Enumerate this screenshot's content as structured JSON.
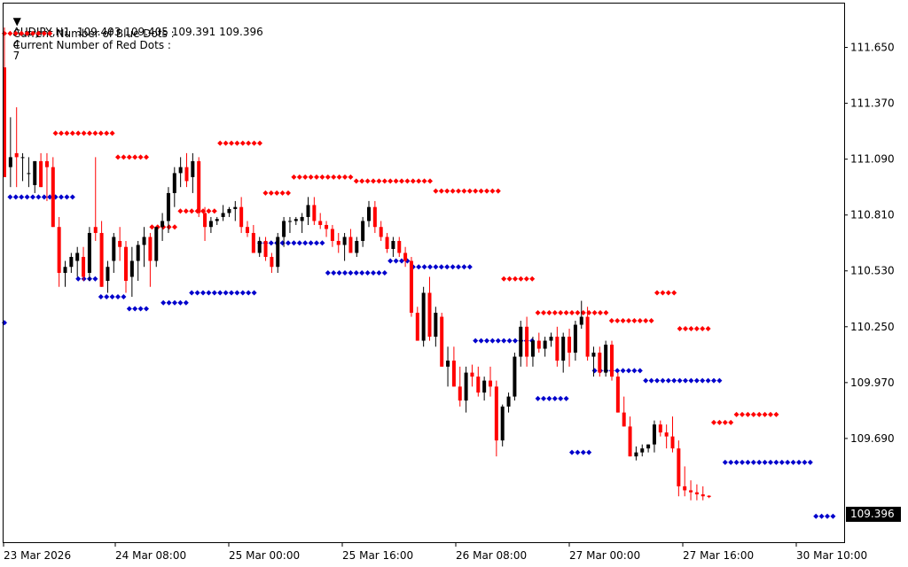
{
  "header": {
    "symbol_line": "AUDJPY,H1  109.403 109.405 109.391 109.396",
    "blue_label": "Current Number of Blue Dots :",
    "blue_value": "4",
    "red_label": "Current Number of Red Dots :",
    "red_value": "7"
  },
  "current_price": "109.396",
  "colors": {
    "bull": "#000000",
    "bear": "#ff0000",
    "blue_dot": "#0000cc",
    "red_dot": "#ff0000",
    "background": "#ffffff"
  },
  "chart_data": {
    "type": "candlestick",
    "symbol": "AUDJPY",
    "timeframe": "H1",
    "y_ticks": [
      "111.650",
      "111.370",
      "111.090",
      "110.810",
      "110.530",
      "110.250",
      "109.970",
      "109.690"
    ],
    "x_ticks": [
      "23 Mar 2026",
      "24 Mar 08:00",
      "25 Mar 00:00",
      "25 Mar 16:00",
      "26 Mar 08:00",
      "27 Mar 00:00",
      "27 Mar 16:00",
      "30 Mar 10:00"
    ],
    "ylim": [
      109.17,
      111.87
    ],
    "candles": [
      [
        111.55,
        111.75,
        111.0,
        111.0
      ],
      [
        111.05,
        111.3,
        110.95,
        111.1
      ],
      [
        111.12,
        111.35,
        110.95,
        111.1
      ],
      [
        111.1,
        111.12,
        110.98,
        111.1
      ],
      [
        111.02,
        111.1,
        110.95,
        111.02
      ],
      [
        110.96,
        111.08,
        110.92,
        111.08
      ],
      [
        111.08,
        111.12,
        110.95,
        110.95
      ],
      [
        111.08,
        111.12,
        110.88,
        111.05
      ],
      [
        111.05,
        111.1,
        110.75,
        110.75
      ],
      [
        110.75,
        110.8,
        110.45,
        110.52
      ],
      [
        110.52,
        110.58,
        110.45,
        110.55
      ],
      [
        110.55,
        110.62,
        110.52,
        110.6
      ],
      [
        110.58,
        110.65,
        110.5,
        110.62
      ],
      [
        110.6,
        110.65,
        110.48,
        110.5
      ],
      [
        110.52,
        110.75,
        110.48,
        110.72
      ],
      [
        110.75,
        111.1,
        110.68,
        110.72
      ],
      [
        110.72,
        110.78,
        110.45,
        110.45
      ],
      [
        110.48,
        110.58,
        110.42,
        110.55
      ],
      [
        110.58,
        110.72,
        110.52,
        110.7
      ],
      [
        110.68,
        110.75,
        110.58,
        110.65
      ],
      [
        110.65,
        110.68,
        110.42,
        110.48
      ],
      [
        110.5,
        110.65,
        110.4,
        110.58
      ],
      [
        110.58,
        110.68,
        110.48,
        110.66
      ],
      [
        110.66,
        110.75,
        110.55,
        110.7
      ],
      [
        110.7,
        110.72,
        110.45,
        110.58
      ],
      [
        110.58,
        110.75,
        110.55,
        110.75
      ],
      [
        110.75,
        110.82,
        110.68,
        110.78
      ],
      [
        110.78,
        110.95,
        110.72,
        110.92
      ],
      [
        110.92,
        111.05,
        110.85,
        111.02
      ],
      [
        111.02,
        111.1,
        110.95,
        111.05
      ],
      [
        111.05,
        111.12,
        110.95,
        110.98
      ],
      [
        111.0,
        111.12,
        110.92,
        111.08
      ],
      [
        111.08,
        111.1,
        110.8,
        110.82
      ],
      [
        110.82,
        110.85,
        110.68,
        110.75
      ],
      [
        110.75,
        110.8,
        110.72,
        110.78
      ],
      [
        110.78,
        110.8,
        110.76,
        110.79
      ],
      [
        110.8,
        110.86,
        110.78,
        110.82
      ],
      [
        110.82,
        110.85,
        110.8,
        110.84
      ],
      [
        110.84,
        110.88,
        110.78,
        110.85
      ],
      [
        110.85,
        110.9,
        110.72,
        110.75
      ],
      [
        110.75,
        110.78,
        110.7,
        110.72
      ],
      [
        110.72,
        110.76,
        110.62,
        110.62
      ],
      [
        110.62,
        110.7,
        110.6,
        110.68
      ],
      [
        110.68,
        110.7,
        110.58,
        110.6
      ],
      [
        110.6,
        110.62,
        110.52,
        110.55
      ],
      [
        110.55,
        110.72,
        110.52,
        110.7
      ],
      [
        110.7,
        110.8,
        110.65,
        110.78
      ],
      [
        110.78,
        110.8,
        110.72,
        110.78
      ],
      [
        110.78,
        110.8,
        110.76,
        110.79
      ],
      [
        110.78,
        110.82,
        110.72,
        110.8
      ],
      [
        110.8,
        110.9,
        110.76,
        110.86
      ],
      [
        110.86,
        110.9,
        110.76,
        110.78
      ],
      [
        110.78,
        110.82,
        110.74,
        110.76
      ],
      [
        110.76,
        110.78,
        110.7,
        110.74
      ],
      [
        110.74,
        110.76,
        110.65,
        110.68
      ],
      [
        110.68,
        110.72,
        110.62,
        110.66
      ],
      [
        110.66,
        110.72,
        110.58,
        110.7
      ],
      [
        110.7,
        110.74,
        110.62,
        110.62
      ],
      [
        110.62,
        110.7,
        110.6,
        110.68
      ],
      [
        110.68,
        110.8,
        110.65,
        110.78
      ],
      [
        110.78,
        110.88,
        110.75,
        110.85
      ],
      [
        110.85,
        110.88,
        110.72,
        110.75
      ],
      [
        110.75,
        110.78,
        110.68,
        110.7
      ],
      [
        110.7,
        110.72,
        110.62,
        110.64
      ],
      [
        110.64,
        110.7,
        110.6,
        110.68
      ],
      [
        110.68,
        110.7,
        110.6,
        110.62
      ],
      [
        110.62,
        110.65,
        110.55,
        110.58
      ],
      [
        110.58,
        110.6,
        110.3,
        110.32
      ],
      [
        110.32,
        110.35,
        110.18,
        110.18
      ],
      [
        110.18,
        110.45,
        110.15,
        110.42
      ],
      [
        110.42,
        110.5,
        110.18,
        110.2
      ],
      [
        110.2,
        110.35,
        110.15,
        110.32
      ],
      [
        110.3,
        110.32,
        110.05,
        110.05
      ],
      [
        110.05,
        110.15,
        109.95,
        110.08
      ],
      [
        110.08,
        110.15,
        109.95,
        109.95
      ],
      [
        109.95,
        110.05,
        109.85,
        109.88
      ],
      [
        109.88,
        110.05,
        109.82,
        110.02
      ],
      [
        110.02,
        110.06,
        109.95,
        110.0
      ],
      [
        110.0,
        110.05,
        109.9,
        109.92
      ],
      [
        109.92,
        110.0,
        109.88,
        109.98
      ],
      [
        109.98,
        110.05,
        109.9,
        109.95
      ],
      [
        109.95,
        109.98,
        109.6,
        109.68
      ],
      [
        109.68,
        109.86,
        109.65,
        109.85
      ],
      [
        109.85,
        109.92,
        109.82,
        109.9
      ],
      [
        109.9,
        110.12,
        109.88,
        110.1
      ],
      [
        110.1,
        110.28,
        110.05,
        110.25
      ],
      [
        110.25,
        110.3,
        110.05,
        110.1
      ],
      [
        110.1,
        110.2,
        110.05,
        110.18
      ],
      [
        110.18,
        110.22,
        110.12,
        110.14
      ],
      [
        110.14,
        110.2,
        110.1,
        110.18
      ],
      [
        110.18,
        110.22,
        110.15,
        110.2
      ],
      [
        110.2,
        110.25,
        110.05,
        110.08
      ],
      [
        110.08,
        110.22,
        110.02,
        110.2
      ],
      [
        110.2,
        110.24,
        110.05,
        110.12
      ],
      [
        110.12,
        110.28,
        110.08,
        110.26
      ],
      [
        110.26,
        110.38,
        110.24,
        110.3
      ],
      [
        110.3,
        110.35,
        110.08,
        110.1
      ],
      [
        110.1,
        110.15,
        110.0,
        110.12
      ],
      [
        110.12,
        110.15,
        110.0,
        110.02
      ],
      [
        110.02,
        110.18,
        110.0,
        110.16
      ],
      [
        110.16,
        110.18,
        109.98,
        110.0
      ],
      [
        110.0,
        110.02,
        109.82,
        109.82
      ],
      [
        109.82,
        109.9,
        109.75,
        109.75
      ],
      [
        109.75,
        109.8,
        109.6,
        109.6
      ],
      [
        109.6,
        109.65,
        109.58,
        109.62
      ],
      [
        109.62,
        109.66,
        109.6,
        109.64
      ],
      [
        109.64,
        109.66,
        109.62,
        109.66
      ],
      [
        109.66,
        109.78,
        109.62,
        109.76
      ],
      [
        109.76,
        109.78,
        109.7,
        109.72
      ],
      [
        109.72,
        109.76,
        109.64,
        109.7
      ],
      [
        109.7,
        109.8,
        109.62,
        109.64
      ],
      [
        109.64,
        109.68,
        109.4,
        109.45
      ],
      [
        109.45,
        109.55,
        109.4,
        109.43
      ],
      [
        109.43,
        109.48,
        109.38,
        109.42
      ],
      [
        109.42,
        109.46,
        109.38,
        109.41
      ],
      [
        109.41,
        109.45,
        109.38,
        109.4
      ],
      [
        109.403,
        109.405,
        109.391,
        109.396
      ]
    ],
    "red_dot_series": [
      {
        "from": 0,
        "to": 8,
        "value": 111.72
      },
      {
        "from": 9,
        "to": 19,
        "value": 111.22
      },
      {
        "from": 20,
        "to": 25,
        "value": 111.1
      },
      {
        "from": 26,
        "to": 30,
        "value": 110.75
      },
      {
        "from": 31,
        "to": 37,
        "value": 110.83
      },
      {
        "from": 38,
        "to": 45,
        "value": 111.17
      },
      {
        "from": 46,
        "to": 50,
        "value": 110.92
      },
      {
        "from": 51,
        "to": 61,
        "value": 111.0
      },
      {
        "from": 62,
        "to": 75,
        "value": 110.98
      },
      {
        "from": 76,
        "to": 87,
        "value": 110.93
      },
      {
        "from": 88,
        "to": 93,
        "value": 110.49
      },
      {
        "from": 94,
        "to": 106,
        "value": 110.32
      },
      {
        "from": 107,
        "to": 114,
        "value": 110.28
      },
      {
        "from": 115,
        "to": 118,
        "value": 110.42
      },
      {
        "from": 119,
        "to": 124,
        "value": 110.24
      },
      {
        "from": 125,
        "to": 128,
        "value": 109.77
      },
      {
        "from": 129,
        "to": 136,
        "value": 109.81
      }
    ],
    "blue_dot_series": [
      {
        "from": 0,
        "to": 0,
        "value": 110.27
      },
      {
        "from": 1,
        "to": 12,
        "value": 110.9
      },
      {
        "from": 13,
        "to": 16,
        "value": 110.49
      },
      {
        "from": 17,
        "to": 21,
        "value": 110.4
      },
      {
        "from": 22,
        "to": 25,
        "value": 110.34
      },
      {
        "from": 28,
        "to": 32,
        "value": 110.37
      },
      {
        "from": 33,
        "to": 44,
        "value": 110.42
      },
      {
        "from": 45,
        "to": 56,
        "value": 110.67
      },
      {
        "from": 57,
        "to": 67,
        "value": 110.52
      },
      {
        "from": 68,
        "to": 71,
        "value": 110.58
      },
      {
        "from": 72,
        "to": 82,
        "value": 110.55
      },
      {
        "from": 83,
        "to": 93,
        "value": 110.18
      },
      {
        "from": 94,
        "to": 99,
        "value": 109.89
      },
      {
        "from": 100,
        "to": 103,
        "value": 109.62
      },
      {
        "from": 104,
        "to": 112,
        "value": 110.03
      },
      {
        "from": 113,
        "to": 126,
        "value": 109.98
      },
      {
        "from": 127,
        "to": 142,
        "value": 109.57
      },
      {
        "from": 143,
        "to": 146,
        "value": 109.3
      }
    ]
  }
}
